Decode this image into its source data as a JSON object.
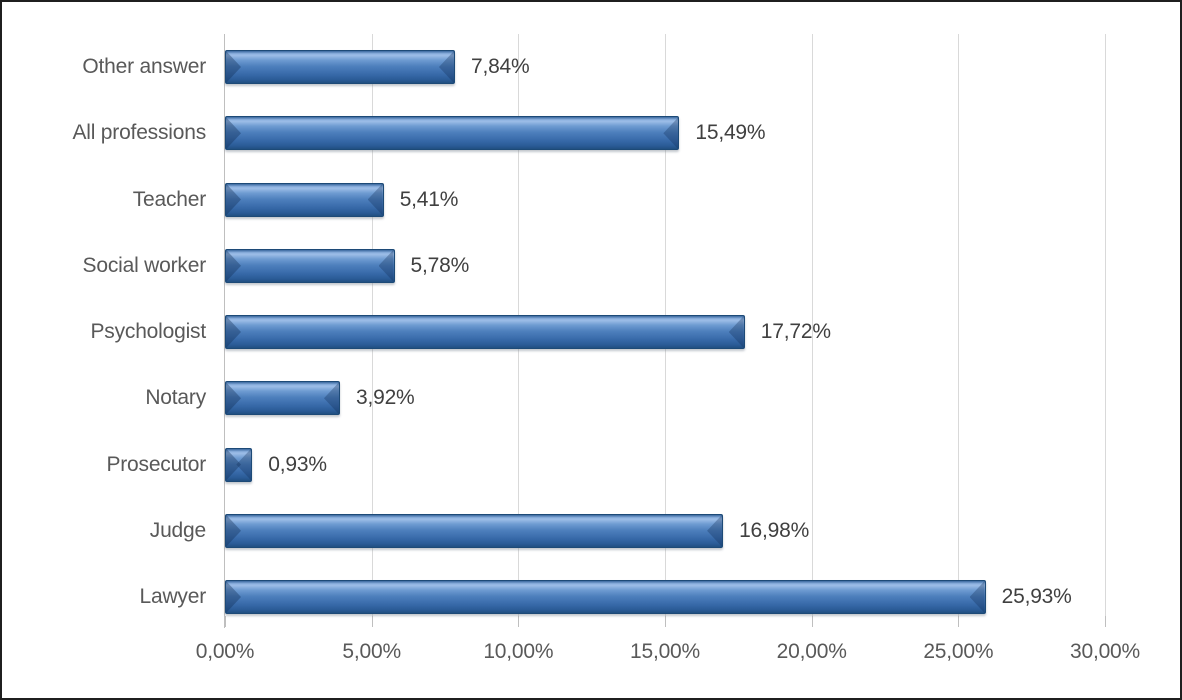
{
  "chart_data": {
    "type": "bar",
    "orientation": "horizontal",
    "title": "",
    "xlabel": "",
    "ylabel": "",
    "categories": [
      "Other answer",
      "All professions",
      "Teacher",
      "Social worker",
      "Psychologist",
      "Notary",
      "Prosecutor",
      "Judge",
      "Lawyer"
    ],
    "values": [
      7.84,
      15.49,
      5.41,
      5.78,
      17.72,
      3.92,
      0.93,
      16.98,
      25.93
    ],
    "value_labels": [
      "7,84%",
      "15,49%",
      "5,41%",
      "5,78%",
      "17,72%",
      "3,92%",
      "0,93%",
      "16,98%",
      "25,93%"
    ],
    "x_axis": {
      "min": 0,
      "max": 30,
      "ticks": [
        0,
        5,
        10,
        15,
        20,
        25,
        30
      ],
      "tick_labels": [
        "0,00%",
        "5,00%",
        "10,00%",
        "15,00%",
        "20,00%",
        "25,00%",
        "30,00%"
      ]
    },
    "grid": "vertical-gridlines-on",
    "legend": "none",
    "colors": {
      "bar_fill_main": "#4377B5",
      "bar_fill_highlight": "#9CBDE7",
      "bar_fill_shadow": "#204F81",
      "bar_border": "#1D4A77",
      "gridline": "#D9D9D9",
      "axis_line": "#BFBFBF",
      "category_text": "#595959",
      "value_text": "#404040",
      "frame_border": "#1F1F1F",
      "background": "#FFFFFF"
    }
  }
}
